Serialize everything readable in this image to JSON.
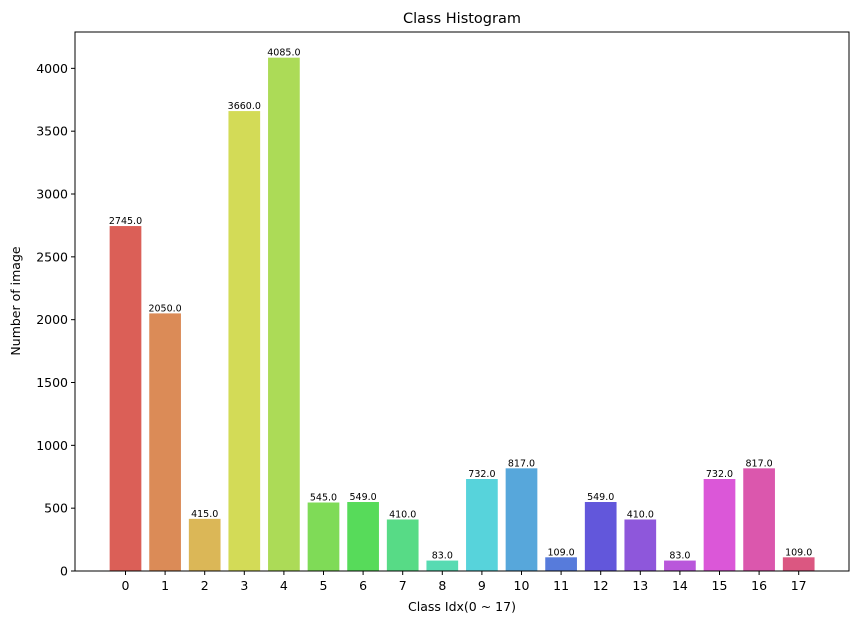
{
  "chart_data": {
    "type": "bar",
    "title": "Class Histogram",
    "xlabel": "Class Idx(0 ~ 17)",
    "ylabel": "Number of image",
    "categories": [
      "0",
      "1",
      "2",
      "3",
      "4",
      "5",
      "6",
      "7",
      "8",
      "9",
      "10",
      "11",
      "12",
      "13",
      "14",
      "15",
      "16",
      "17"
    ],
    "values": [
      2745,
      2050,
      415,
      3660,
      4085,
      545,
      549,
      410,
      83,
      732,
      817,
      109,
      549,
      410,
      83,
      732,
      817,
      109
    ],
    "value_labels": [
      "2745.0",
      "2050.0",
      "415.0",
      "3660.0",
      "4085.0",
      "545.0",
      "549.0",
      "410.0",
      "83.0",
      "732.0",
      "817.0",
      "109.0",
      "549.0",
      "410.0",
      "83.0",
      "732.0",
      "817.0",
      "109.0"
    ],
    "colors": [
      "#db5f57",
      "#db8b57",
      "#dbb757",
      "#d3db57",
      "#acdb57",
      "#7fdb57",
      "#57db5a",
      "#57db86",
      "#57dbb2",
      "#57d3db",
      "#57a7db",
      "#577bdb",
      "#6257db",
      "#8e57db",
      "#b957db",
      "#db57d8",
      "#db57ad",
      "#db5781"
    ],
    "yticks": [
      "0",
      "500",
      "1000",
      "1500",
      "2000",
      "2500",
      "3000",
      "3500",
      "4000"
    ],
    "ylim": [
      0,
      4289.25
    ],
    "grid": false,
    "legend": "none"
  }
}
